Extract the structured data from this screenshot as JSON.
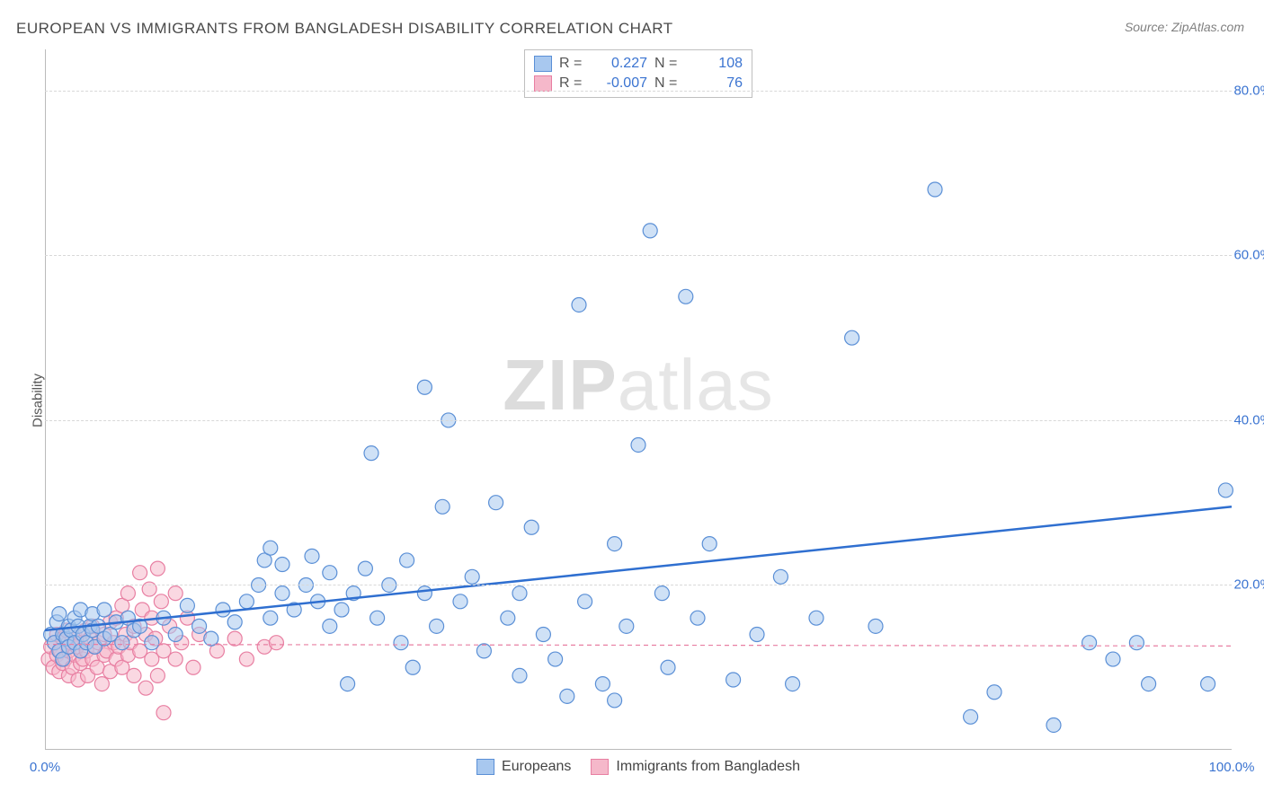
{
  "title": "EUROPEAN VS IMMIGRANTS FROM BANGLADESH DISABILITY CORRELATION CHART",
  "source": "Source: ZipAtlas.com",
  "watermark_bold": "ZIP",
  "watermark_rest": "atlas",
  "y_axis_label": "Disability",
  "chart": {
    "type": "scatter",
    "background_color": "#ffffff",
    "grid_color": "#d8d8d8",
    "xlim": [
      0,
      100
    ],
    "ylim": [
      0,
      85
    ],
    "x_ticks": [
      {
        "v": 0,
        "label": "0.0%"
      },
      {
        "v": 100,
        "label": "100.0%"
      }
    ],
    "y_ticks": [
      {
        "v": 20,
        "label": "20.0%"
      },
      {
        "v": 40,
        "label": "40.0%"
      },
      {
        "v": 60,
        "label": "60.0%"
      },
      {
        "v": 80,
        "label": "80.0%"
      }
    ],
    "marker_radius": 8,
    "marker_stroke_width": 1.2,
    "series": [
      {
        "name": "Europeans",
        "key": "europeans",
        "fill": "#a8c8ef",
        "stroke": "#5a8fd6",
        "fill_opacity": 0.55,
        "r_value": "0.227",
        "n_value": "108",
        "trend": {
          "x1": 0,
          "y1": 14.5,
          "x2": 100,
          "y2": 29.5,
          "stroke": "#2f6fd0",
          "width": 2.5,
          "dash": "none"
        },
        "points": [
          [
            0.5,
            14
          ],
          [
            0.8,
            13
          ],
          [
            1.0,
            15.5
          ],
          [
            1.2,
            12
          ],
          [
            1.2,
            16.5
          ],
          [
            1.5,
            14
          ],
          [
            1.5,
            11
          ],
          [
            1.8,
            13.5
          ],
          [
            2.0,
            15
          ],
          [
            2.0,
            12.5
          ],
          [
            2.2,
            14.5
          ],
          [
            2.5,
            13
          ],
          [
            2.5,
            16
          ],
          [
            2.8,
            15
          ],
          [
            3.0,
            12
          ],
          [
            3.0,
            17
          ],
          [
            3.2,
            14
          ],
          [
            3.5,
            13
          ],
          [
            3.8,
            15
          ],
          [
            4.0,
            14.5
          ],
          [
            4.0,
            16.5
          ],
          [
            4.2,
            12.5
          ],
          [
            4.5,
            15
          ],
          [
            5.0,
            13.5
          ],
          [
            5.0,
            17
          ],
          [
            5.5,
            14
          ],
          [
            6.0,
            15.5
          ],
          [
            6.5,
            13
          ],
          [
            7.0,
            16
          ],
          [
            7.5,
            14.5
          ],
          [
            8.0,
            15
          ],
          [
            9.0,
            13
          ],
          [
            10.0,
            16
          ],
          [
            11.0,
            14
          ],
          [
            12.0,
            17.5
          ],
          [
            13.0,
            15
          ],
          [
            14.0,
            13.5
          ],
          [
            15.0,
            17
          ],
          [
            16.0,
            15.5
          ],
          [
            17.0,
            18
          ],
          [
            18.0,
            20
          ],
          [
            18.5,
            23
          ],
          [
            19.0,
            16
          ],
          [
            19.0,
            24.5
          ],
          [
            20.0,
            19
          ],
          [
            20.0,
            22.5
          ],
          [
            21.0,
            17
          ],
          [
            22.0,
            20
          ],
          [
            22.5,
            23.5
          ],
          [
            23.0,
            18
          ],
          [
            24.0,
            15
          ],
          [
            24.0,
            21.5
          ],
          [
            25.0,
            17
          ],
          [
            25.5,
            8
          ],
          [
            26.0,
            19
          ],
          [
            27.0,
            22
          ],
          [
            27.5,
            36
          ],
          [
            28.0,
            16
          ],
          [
            29.0,
            20
          ],
          [
            30.0,
            13
          ],
          [
            30.5,
            23
          ],
          [
            31.0,
            10
          ],
          [
            32.0,
            19
          ],
          [
            32.0,
            44
          ],
          [
            33.0,
            15
          ],
          [
            33.5,
            29.5
          ],
          [
            34.0,
            40
          ],
          [
            35.0,
            18
          ],
          [
            36.0,
            21
          ],
          [
            37.0,
            12
          ],
          [
            38.0,
            30
          ],
          [
            39.0,
            16
          ],
          [
            40.0,
            19
          ],
          [
            40.0,
            9
          ],
          [
            41.0,
            27
          ],
          [
            42.0,
            14
          ],
          [
            43.0,
            11
          ],
          [
            45.0,
            54
          ],
          [
            45.5,
            18
          ],
          [
            47.0,
            8
          ],
          [
            48.0,
            25
          ],
          [
            49.0,
            15
          ],
          [
            50.0,
            37
          ],
          [
            51.0,
            63
          ],
          [
            52.0,
            19
          ],
          [
            52.5,
            10
          ],
          [
            54.0,
            55
          ],
          [
            55.0,
            16
          ],
          [
            56.0,
            25
          ],
          [
            58.0,
            8.5
          ],
          [
            60.0,
            14
          ],
          [
            62.0,
            21
          ],
          [
            63.0,
            8
          ],
          [
            65.0,
            16
          ],
          [
            68.0,
            50
          ],
          [
            70.0,
            15
          ],
          [
            75.0,
            68
          ],
          [
            78.0,
            4
          ],
          [
            80.0,
            7
          ],
          [
            85.0,
            3
          ],
          [
            88.0,
            13
          ],
          [
            90.0,
            11
          ],
          [
            92.0,
            13
          ],
          [
            93.0,
            8
          ],
          [
            98.0,
            8
          ],
          [
            99.5,
            31.5
          ],
          [
            44,
            6.5
          ],
          [
            48,
            6
          ]
        ]
      },
      {
        "name": "Immigrants from Bangladesh",
        "key": "bangladesh",
        "fill": "#f5b8ca",
        "stroke": "#e87fa2",
        "fill_opacity": 0.55,
        "r_value": "-0.007",
        "n_value": "76",
        "trend": {
          "x1": 0,
          "y1": 12.8,
          "x2": 100,
          "y2": 12.6,
          "stroke": "#e87fa2",
          "width": 1.2,
          "dash": "5,4"
        },
        "points": [
          [
            0.3,
            11
          ],
          [
            0.5,
            12.5
          ],
          [
            0.7,
            10
          ],
          [
            0.8,
            13
          ],
          [
            1.0,
            11.5
          ],
          [
            1.0,
            14
          ],
          [
            1.2,
            9.5
          ],
          [
            1.3,
            12
          ],
          [
            1.5,
            10.5
          ],
          [
            1.5,
            13.5
          ],
          [
            1.7,
            11
          ],
          [
            1.8,
            14.5
          ],
          [
            2.0,
            12
          ],
          [
            2.0,
            9
          ],
          [
            2.2,
            13
          ],
          [
            2.3,
            10
          ],
          [
            2.5,
            11.5
          ],
          [
            2.5,
            14
          ],
          [
            2.7,
            12.5
          ],
          [
            2.8,
            8.5
          ],
          [
            3.0,
            13
          ],
          [
            3.0,
            10.5
          ],
          [
            3.2,
            11
          ],
          [
            3.4,
            14.5
          ],
          [
            3.5,
            12
          ],
          [
            3.6,
            9
          ],
          [
            3.8,
            13.5
          ],
          [
            4.0,
            11
          ],
          [
            4.0,
            15
          ],
          [
            4.2,
            12.5
          ],
          [
            4.4,
            10
          ],
          [
            4.5,
            13
          ],
          [
            4.8,
            8
          ],
          [
            5.0,
            11.5
          ],
          [
            5.0,
            14
          ],
          [
            5.2,
            12
          ],
          [
            5.5,
            9.5
          ],
          [
            5.5,
            15.5
          ],
          [
            5.8,
            13
          ],
          [
            6.0,
            11
          ],
          [
            6.0,
            16
          ],
          [
            6.2,
            12.5
          ],
          [
            6.5,
            10
          ],
          [
            6.5,
            17.5
          ],
          [
            6.8,
            14
          ],
          [
            7.0,
            11.5
          ],
          [
            7.0,
            19
          ],
          [
            7.2,
            13
          ],
          [
            7.5,
            15
          ],
          [
            7.5,
            9
          ],
          [
            8.0,
            21.5
          ],
          [
            8.0,
            12
          ],
          [
            8.2,
            17
          ],
          [
            8.5,
            14
          ],
          [
            8.5,
            7.5
          ],
          [
            8.8,
            19.5
          ],
          [
            9.0,
            11
          ],
          [
            9.0,
            16
          ],
          [
            9.3,
            13.5
          ],
          [
            9.5,
            22
          ],
          [
            9.5,
            9
          ],
          [
            9.8,
            18
          ],
          [
            10.0,
            12
          ],
          [
            10.0,
            4.5
          ],
          [
            10.5,
            15
          ],
          [
            11.0,
            11
          ],
          [
            11.0,
            19
          ],
          [
            11.5,
            13
          ],
          [
            12.0,
            16
          ],
          [
            12.5,
            10
          ],
          [
            13.0,
            14
          ],
          [
            14.5,
            12
          ],
          [
            16.0,
            13.5
          ],
          [
            17.0,
            11
          ],
          [
            18.5,
            12.5
          ],
          [
            19.5,
            13
          ]
        ]
      }
    ],
    "legend_top": {
      "r_label": "R =",
      "n_label": "N ="
    },
    "legend_bottom": [
      {
        "label": "Europeans",
        "fill": "#a8c8ef",
        "stroke": "#5a8fd6"
      },
      {
        "label": "Immigrants from Bangladesh",
        "fill": "#f5b8ca",
        "stroke": "#e87fa2"
      }
    ]
  }
}
